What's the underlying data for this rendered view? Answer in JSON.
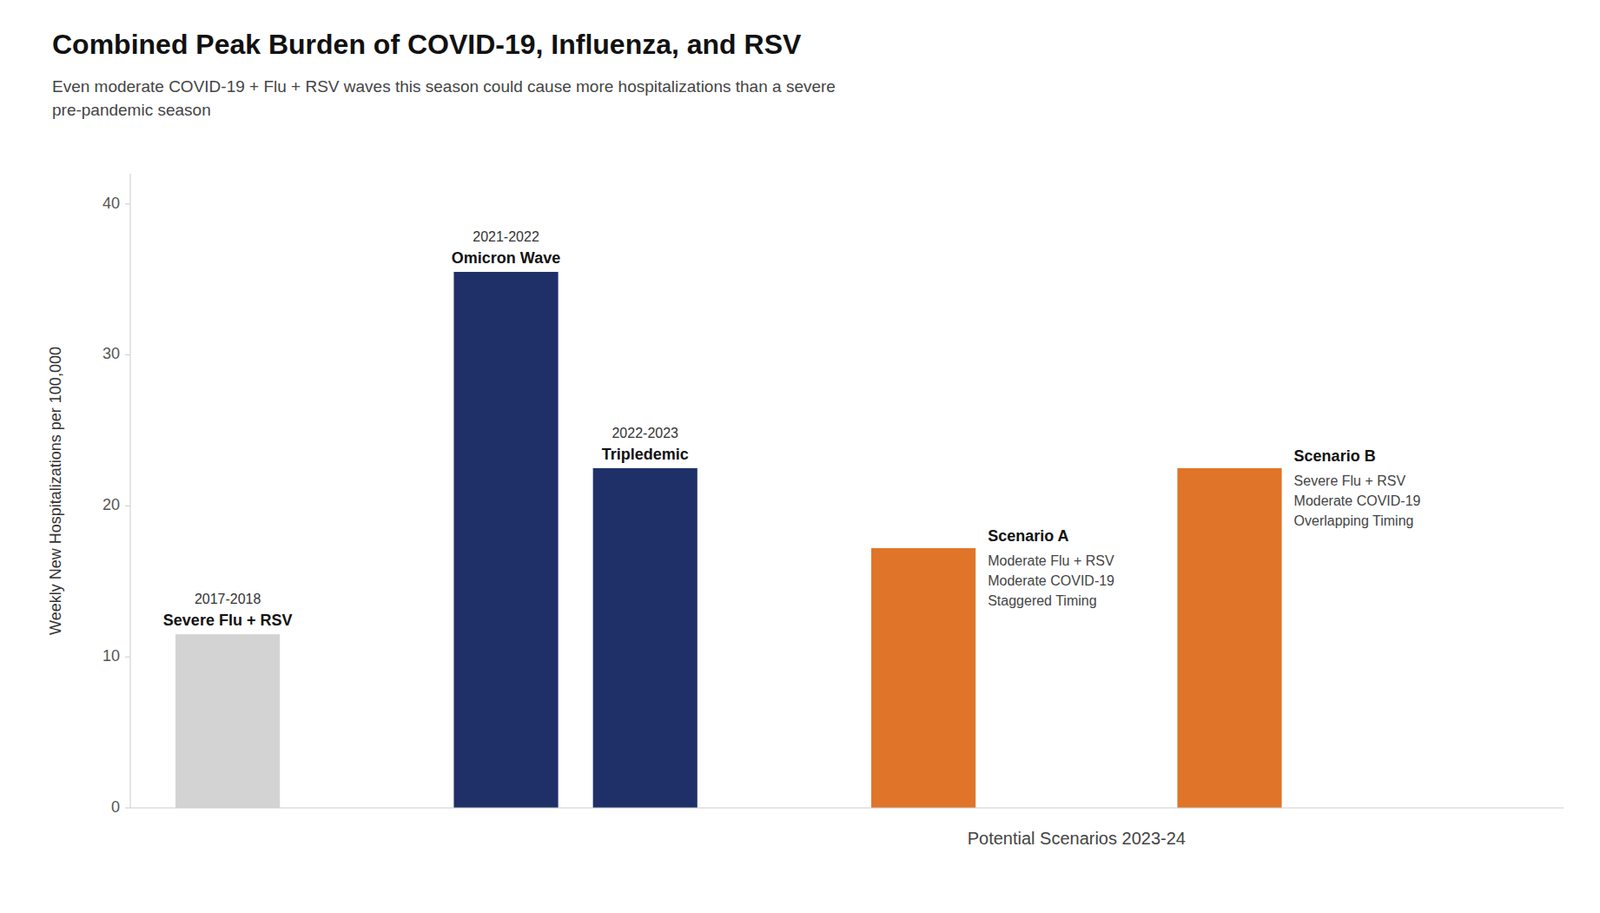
{
  "chart_data": {
    "type": "bar",
    "title": "Combined Peak Burden of COVID-19, Influenza, and RSV",
    "subtitle": "Even moderate COVID-19 + Flu + RSV waves this season could cause more hospitalizations than a severe\npre-pandemic season",
    "ylabel": "Weekly New Hospitalizations per 100,000",
    "xlabel": "Potential Scenarios 2023-24",
    "categories": [
      "Severe Flu + RSV",
      "Omicron Wave",
      "Tripledemic",
      "Scenario A",
      "Scenario B"
    ],
    "values": [
      11.5,
      35.5,
      22.5,
      17.2,
      22.5
    ],
    "colors": [
      "#d3d3d3",
      "#1f3068",
      "#1f3068",
      "#e07428",
      "#e07428"
    ],
    "annotations": [
      {
        "category": 0,
        "text": "2017-2018"
      },
      {
        "category": 1,
        "text": "2021-2022"
      },
      {
        "category": 2,
        "text": "2022-2023"
      },
      {
        "category": 3,
        "lines": [
          "Moderate Flu + RSV",
          "Moderate COVID-19",
          "Staggered Timing"
        ]
      },
      {
        "category": 4,
        "lines": [
          "Severe Flu + RSV",
          "Moderate COVID-19",
          "Overlapping Timing"
        ]
      }
    ],
    "ylim": [
      0,
      42
    ],
    "yticks": [
      0,
      10,
      20,
      30,
      40
    ],
    "grid": false,
    "tick_labels": "y"
  }
}
